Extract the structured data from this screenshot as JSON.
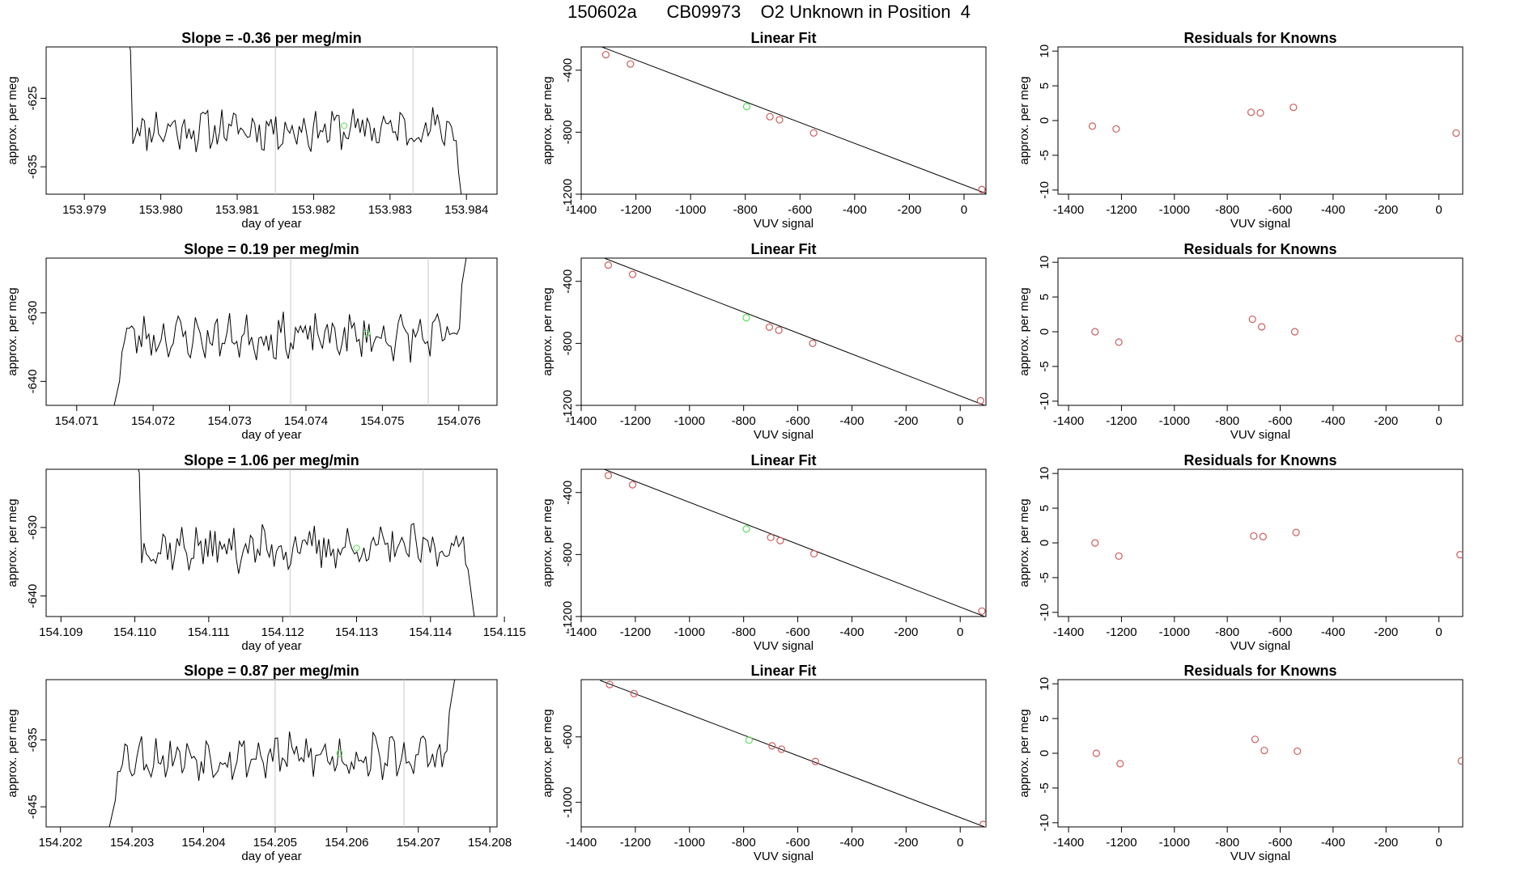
{
  "page": {
    "title_parts": [
      "150602a",
      "CB09973",
      "O2 Unknown in Position  4"
    ]
  },
  "colors": {
    "trace": "#000000",
    "known_points": "#cd5c5c",
    "unknown_point": "#5fdc5f",
    "marker_lines": "#c8c8c8"
  },
  "chart_data": [
    {
      "type": "line",
      "row": 1,
      "title": "Slope =  -0.36  per meg/min",
      "xlabel": "day of year",
      "ylabel": "approx. per meg",
      "xlim": [
        153.9785,
        153.9844
      ],
      "ylim": [
        -639.0,
        -617.5
      ],
      "xticks": [
        153.979,
        153.98,
        153.981,
        153.982,
        153.983,
        153.984
      ],
      "xtick_labels": [
        "153.979",
        "153.980",
        "153.981",
        "153.982",
        "153.983",
        "153.984"
      ],
      "yticks": [
        -625,
        -635
      ],
      "ytick_labels": [
        "-625",
        "-635"
      ],
      "vlines": [
        153.9815,
        153.9833
      ],
      "highlight_point": {
        "x": 153.9824,
        "y": -629.0
      },
      "trace": {
        "x_start": 153.97945,
        "x_end": 153.98405,
        "n": 150,
        "lead_in": [
          -610,
          -618
        ],
        "tail": [
          -633,
          -650
        ],
        "level": -629.5,
        "amp": 2.5,
        "seed": 11
      }
    },
    {
      "type": "line",
      "row": 2,
      "title": "Slope =  0.19  per meg/min",
      "xlabel": "day of year",
      "ylabel": "approx. per meg",
      "xlim": [
        154.0706,
        154.0765
      ],
      "ylim": [
        -643.5,
        -622.0
      ],
      "xticks": [
        154.071,
        154.072,
        154.073,
        154.074,
        154.075,
        154.076
      ],
      "xtick_labels": [
        "154.071",
        "154.072",
        "154.073",
        "154.074",
        "154.075",
        "154.076"
      ],
      "yticks": [
        -630,
        -640
      ],
      "ytick_labels": [
        "-630",
        "-640"
      ],
      "vlines": [
        154.0738,
        154.0756
      ],
      "highlight_point": {
        "x": 154.0748,
        "y": -633.0
      },
      "trace": {
        "x_start": 154.0714,
        "x_end": 154.0762,
        "n": 150,
        "lead_in": [
          -648,
          -640
        ],
        "tail": [
          -628,
          -615
        ],
        "level": -633.5,
        "amp": 2.6,
        "seed": 23
      }
    },
    {
      "type": "line",
      "row": 3,
      "title": "Slope =  1.06  per meg/min",
      "xlabel": "day of year",
      "ylabel": "approx. per meg",
      "xlim": [
        154.1088,
        154.1149
      ],
      "ylim": [
        -643.0,
        -621.5
      ],
      "xticks": [
        154.109,
        154.11,
        154.111,
        154.112,
        154.113,
        154.114,
        154.115
      ],
      "xtick_labels": [
        "154.109",
        "154.110",
        "154.111",
        "154.112",
        "154.113",
        "154.114",
        "154.115"
      ],
      "yticks": [
        -630,
        -640
      ],
      "ytick_labels": [
        "-630",
        "-640"
      ],
      "vlines": [
        154.1121,
        154.1139
      ],
      "highlight_point": {
        "x": 154.113,
        "y": -633.0
      },
      "trace": {
        "x_start": 154.1099,
        "x_end": 154.1147,
        "n": 150,
        "lead_in": [
          -615,
          -622
        ],
        "tail": [
          -636,
          -652
        ],
        "level": -633.0,
        "amp": 2.6,
        "seed": 37
      }
    },
    {
      "type": "line",
      "row": 4,
      "title": "Slope =  0.87  per meg/min",
      "xlabel": "day of year",
      "ylabel": "approx. per meg",
      "xlim": [
        154.2018,
        154.2081
      ],
      "ylim": [
        -648.0,
        -626.0
      ],
      "xticks": [
        154.202,
        154.203,
        154.204,
        154.205,
        154.206,
        154.207,
        154.208
      ],
      "xtick_labels": [
        "154.202",
        "154.203",
        "154.204",
        "154.205",
        "154.206",
        "154.207",
        "154.208"
      ],
      "yticks": [
        -635,
        -645
      ],
      "ytick_labels": [
        "-635",
        "-645"
      ],
      "vlines": [
        154.205,
        154.2068
      ],
      "highlight_point": {
        "x": 154.2059,
        "y": -637.0
      },
      "trace": {
        "x_start": 154.2026,
        "x_end": 154.2076,
        "n": 150,
        "lead_in": [
          -652,
          -644
        ],
        "tail": [
          -633,
          -620
        ],
        "level": -637.5,
        "amp": 2.7,
        "seed": 53
      }
    },
    {
      "type": "scatter",
      "row": 1,
      "title": "Linear Fit",
      "xlabel": "VUV signal",
      "ylabel": "approx. per meg",
      "xlim": [
        -1400,
        80
      ],
      "ylim": [
        -1200,
        -250
      ],
      "xticks": [
        -1400,
        -1200,
        -1000,
        -800,
        -600,
        -400,
        -200,
        0
      ],
      "xtick_labels": [
        "-1400",
        "-1200",
        "-1000",
        "-800",
        "-600",
        "-400",
        "-200",
        "0"
      ],
      "yticks": [
        -400,
        -800,
        -1200
      ],
      "ytick_labels": [
        "-400",
        "-800",
        "-1200"
      ],
      "fit_line": {
        "x": [
          -1340,
          80
        ],
        "y": [
          -240,
          -1195
        ]
      },
      "known": {
        "x": [
          -1310,
          -1220,
          -710,
          -675,
          -550,
          65
        ],
        "y": [
          -300,
          -360,
          -700,
          -720,
          -805,
          -1170
        ]
      },
      "unknown": {
        "x": [
          -795
        ],
        "y": [
          -635
        ]
      }
    },
    {
      "type": "scatter",
      "row": 2,
      "title": "Linear Fit",
      "xlabel": "VUV signal",
      "ylabel": "approx. per meg",
      "xlim": [
        -1400,
        95
      ],
      "ylim": [
        -1200,
        -250
      ],
      "xticks": [
        -1400,
        -1200,
        -1000,
        -800,
        -600,
        -400,
        -200,
        0
      ],
      "xtick_labels": [
        "-1400",
        "-1200",
        "-1000",
        "-800",
        "-600",
        "-400",
        "-200",
        "0"
      ],
      "yticks": [
        -400,
        -800,
        -1200
      ],
      "ytick_labels": [
        "-400",
        "-800",
        "-1200"
      ],
      "fit_line": {
        "x": [
          -1330,
          90
        ],
        "y": [
          -240,
          -1200
        ]
      },
      "known": {
        "x": [
          -1300,
          -1210,
          -705,
          -670,
          -545,
          75
        ],
        "y": [
          -295,
          -355,
          -695,
          -715,
          -800,
          -1170
        ]
      },
      "unknown": {
        "x": [
          -790
        ],
        "y": [
          -635
        ]
      }
    },
    {
      "type": "scatter",
      "row": 3,
      "title": "Linear Fit",
      "xlabel": "VUV signal",
      "ylabel": "approx. per meg",
      "xlim": [
        -1400,
        95
      ],
      "ylim": [
        -1200,
        -250
      ],
      "xticks": [
        -1400,
        -1200,
        -1000,
        -800,
        -600,
        -400,
        -200,
        0
      ],
      "xtick_labels": [
        "-1400",
        "-1200",
        "-1000",
        "-800",
        "-600",
        "-400",
        "-200",
        "0"
      ],
      "yticks": [
        -400,
        -800,
        -1200
      ],
      "ytick_labels": [
        "-400",
        "-800",
        "-1200"
      ],
      "fit_line": {
        "x": [
          -1330,
          90
        ],
        "y": [
          -240,
          -1200
        ]
      },
      "known": {
        "x": [
          -1300,
          -1210,
          -700,
          -665,
          -540,
          80
        ],
        "y": [
          -290,
          -350,
          -690,
          -710,
          -795,
          -1165
        ]
      },
      "unknown": {
        "x": [
          -790
        ],
        "y": [
          -635
        ]
      }
    },
    {
      "type": "scatter",
      "row": 4,
      "title": "Linear Fit",
      "xlabel": "VUV signal",
      "ylabel": "approx. per meg",
      "xlim": [
        -1400,
        95
      ],
      "ylim": [
        -1150,
        -250
      ],
      "xticks": [
        -1400,
        -1200,
        -1000,
        -800,
        -600,
        -400,
        -200,
        0
      ],
      "xtick_labels": [
        "-1400",
        "-1200",
        "-1000",
        "-800",
        "-600",
        "-400",
        "-200",
        "0"
      ],
      "yticks": [
        -600,
        -1000
      ],
      "ytick_labels": [
        "-600",
        "-1000"
      ],
      "fit_line": {
        "x": [
          -1330,
          90
        ],
        "y": [
          -255,
          -1150
        ]
      },
      "known": {
        "x": [
          -1295,
          -1205,
          -695,
          -660,
          -535,
          85
        ],
        "y": [
          -280,
          -335,
          -655,
          -675,
          -750,
          -1135
        ]
      },
      "unknown": {
        "x": [
          -780
        ],
        "y": [
          -620
        ]
      }
    },
    {
      "type": "scatter",
      "row": 1,
      "title": "Residuals for Knowns",
      "xlabel": "VUV signal",
      "ylabel": "approx. per meg",
      "xlim": [
        -1440,
        90
      ],
      "ylim": [
        -10.6,
        10.6
      ],
      "xticks": [
        -1400,
        -1200,
        -1000,
        -800,
        -600,
        -400,
        -200,
        0
      ],
      "xtick_labels": [
        "-1400",
        "-1200",
        "-1000",
        "-800",
        "-600",
        "-400",
        "-200",
        "0"
      ],
      "yticks": [
        10,
        5,
        0,
        -5,
        -10
      ],
      "ytick_labels": [
        "10",
        "5",
        "0",
        "-5",
        "-10"
      ],
      "known": {
        "x": [
          -1310,
          -1220,
          -710,
          -675,
          -550,
          65
        ],
        "y": [
          -0.8,
          -1.2,
          1.2,
          1.1,
          1.9,
          -1.8
        ]
      }
    },
    {
      "type": "scatter",
      "row": 2,
      "title": "Residuals for Knowns",
      "xlabel": "VUV signal",
      "ylabel": "approx. per meg",
      "xlim": [
        -1440,
        90
      ],
      "ylim": [
        -10.6,
        10.6
      ],
      "xticks": [
        -1400,
        -1200,
        -1000,
        -800,
        -600,
        -400,
        -200,
        0
      ],
      "xtick_labels": [
        "-1400",
        "-1200",
        "-1000",
        "-800",
        "-600",
        "-400",
        "-200",
        "0"
      ],
      "yticks": [
        10,
        5,
        0,
        -5,
        -10
      ],
      "ytick_labels": [
        "10",
        "5",
        "0",
        "-5",
        "-10"
      ],
      "known": {
        "x": [
          -1300,
          -1210,
          -705,
          -670,
          -545,
          75
        ],
        "y": [
          0.0,
          -1.5,
          1.8,
          0.7,
          0.0,
          -1.0
        ]
      }
    },
    {
      "type": "scatter",
      "row": 3,
      "title": "Residuals for Knowns",
      "xlabel": "VUV signal",
      "ylabel": "approx. per meg",
      "xlim": [
        -1440,
        90
      ],
      "ylim": [
        -10.6,
        10.6
      ],
      "xticks": [
        -1400,
        -1200,
        -1000,
        -800,
        -600,
        -400,
        -200,
        0
      ],
      "xtick_labels": [
        "-1400",
        "-1200",
        "-1000",
        "-800",
        "-600",
        "-400",
        "-200",
        "0"
      ],
      "yticks": [
        10,
        5,
        0,
        -5,
        -10
      ],
      "ytick_labels": [
        "10",
        "5",
        "0",
        "-5",
        "-10"
      ],
      "known": {
        "x": [
          -1300,
          -1210,
          -700,
          -665,
          -540,
          80
        ],
        "y": [
          0.0,
          -1.9,
          1.0,
          0.9,
          1.5,
          -1.7
        ]
      }
    },
    {
      "type": "scatter",
      "row": 4,
      "title": "Residuals for Knowns",
      "xlabel": "VUV signal",
      "ylabel": "approx. per meg",
      "xlim": [
        -1440,
        90
      ],
      "ylim": [
        -10.6,
        10.6
      ],
      "xticks": [
        -1400,
        -1200,
        -1000,
        -800,
        -600,
        -400,
        -200,
        0
      ],
      "xtick_labels": [
        "-1400",
        "-1200",
        "-1000",
        "-800",
        "-600",
        "-400",
        "-200",
        "0"
      ],
      "yticks": [
        10,
        5,
        0,
        -5,
        -10
      ],
      "ytick_labels": [
        "10",
        "5",
        "0",
        "-5",
        "-10"
      ],
      "known": {
        "x": [
          -1295,
          -1205,
          -695,
          -660,
          -535,
          85
        ],
        "y": [
          0.0,
          -1.5,
          2.0,
          0.4,
          0.3,
          -1.1
        ]
      }
    }
  ]
}
